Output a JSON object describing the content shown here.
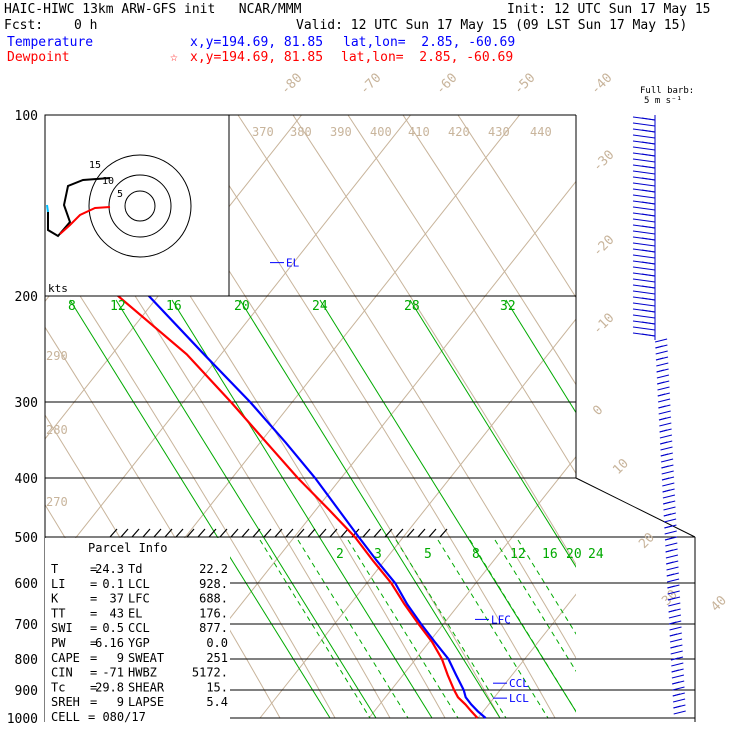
{
  "header": {
    "title": "HAIC-HIWC 13km ARW-GFS init   NCAR/MMM",
    "init": "Init: 12 UTC Sun 17 May 15",
    "fcst_label": "Fcst:",
    "fcst_value": "0 h",
    "valid": "Valid: 12 UTC Sun 17 May 15 (09 LST Sun 17 May 15)",
    "temperature_label": "Temperature",
    "temperature_xy": "x,y=194.69, 81.85",
    "temperature_latlon": "lat,lon=  2.85, -60.69",
    "dewpoint_label": "Dewpoint",
    "dewpoint_marker": "☆",
    "dewpoint_xy": "x,y=194.69, 81.85",
    "dewpoint_latlon": "lat,lon=  2.85, -60.69",
    "barb_legend_1": "Full barb:",
    "barb_legend_2": "5 m s⁻¹"
  },
  "colors": {
    "temperature": "#0000ff",
    "dewpoint": "#ff0000",
    "mixing_ratio": "#00aa00",
    "dry_adiabat": "#c8b49b",
    "barbs": "#0000cc",
    "hodograph": "#000000"
  },
  "chart_data": {
    "type": "line",
    "title": "HAIC-HIWC 13km ARW-GFS init   NCAR/MMM",
    "ylabel": "",
    "xlabel": "",
    "y_scale": "log-pressure (hPa)",
    "ylim": [
      1000,
      100
    ],
    "pressure_ticks": [
      100,
      200,
      300,
      400,
      500,
      600,
      700,
      800,
      900,
      1000
    ],
    "isotherm_labels": [
      -80,
      -70,
      -60,
      -50,
      -40,
      -30,
      -20,
      -10,
      0,
      10,
      20,
      30,
      40
    ],
    "theta_labels": [
      370,
      380,
      390,
      400,
      410,
      420,
      430,
      440,
      290,
      280,
      270
    ],
    "mixing_ratio_upper_labels": [
      8,
      12,
      16,
      20,
      24,
      28,
      32
    ],
    "mixing_ratio_lower_labels": [
      2,
      3,
      5,
      8,
      12,
      16,
      20,
      24
    ],
    "hodograph_ring_labels": [
      "15",
      "10",
      "5"
    ],
    "hodograph_units": "kts",
    "series": [
      {
        "name": "Temperature",
        "color": "#0000ff",
        "points": [
          [
            1000,
            24.3
          ],
          [
            975,
            22.5
          ],
          [
            950,
            21.0
          ],
          [
            925,
            19.8
          ],
          [
            900,
            19.5
          ],
          [
            850,
            18.0
          ],
          [
            800,
            16.5
          ],
          [
            750,
            13.5
          ],
          [
            700,
            10.5
          ],
          [
            650,
            7.5
          ],
          [
            600,
            5.0
          ],
          [
            550,
            1.0
          ],
          [
            500,
            -3.0
          ],
          [
            450,
            -7.5
          ],
          [
            400,
            -12.5
          ],
          [
            350,
            -19.0
          ],
          [
            300,
            -27.0
          ],
          [
            250,
            -37.5
          ],
          [
            200,
            -50.0
          ],
          [
            175,
            -58.0
          ],
          [
            150,
            -66.0
          ],
          [
            130,
            -74.0
          ],
          [
            115,
            -79.0
          ],
          [
            100,
            -82.0
          ]
        ]
      },
      {
        "name": "Dewpoint",
        "color": "#ff0000",
        "points": [
          [
            1000,
            22.2
          ],
          [
            975,
            20.8
          ],
          [
            950,
            19.5
          ],
          [
            925,
            17.8
          ],
          [
            900,
            17.0
          ],
          [
            850,
            15.8
          ],
          [
            800,
            14.8
          ],
          [
            750,
            12.8
          ],
          [
            700,
            9.8
          ],
          [
            650,
            6.8
          ],
          [
            600,
            4.0
          ],
          [
            550,
            0.0
          ],
          [
            500,
            -4.0
          ],
          [
            450,
            -10.0
          ],
          [
            400,
            -17.0
          ],
          [
            350,
            -24.0
          ],
          [
            300,
            -32.0
          ],
          [
            250,
            -42.0
          ],
          [
            200,
            -58.0
          ],
          [
            175,
            -66.0
          ],
          [
            150,
            -74.0
          ],
          [
            130,
            -82.0
          ],
          [
            115,
            -86.0
          ],
          [
            100,
            -88.0
          ]
        ]
      }
    ],
    "levels": [
      {
        "name": "EL",
        "pressure": 176
      },
      {
        "name": "LFC",
        "pressure": 688
      },
      {
        "name": "CCL",
        "pressure": 877
      },
      {
        "name": "LCL",
        "pressure": 928
      }
    ]
  },
  "parcel_info": {
    "title": "Parcel Info",
    "rows": [
      {
        "l1": "T",
        "v1": "24.3",
        "l2": "Td",
        "v2": "22.2"
      },
      {
        "l1": "LI",
        "v1": "0.1",
        "l2": "LCL",
        "v2": "928."
      },
      {
        "l1": "K",
        "v1": "37",
        "l2": "LFC",
        "v2": "688."
      },
      {
        "l1": "TT",
        "v1": "43",
        "l2": "EL",
        "v2": "176."
      },
      {
        "l1": "SWI",
        "v1": "0.5",
        "l2": "CCL",
        "v2": "877."
      },
      {
        "l1": "PW",
        "v1": "6.16",
        "l2": "YGP",
        "v2": "0.0"
      },
      {
        "l1": "CAPE",
        "v1": "9",
        "l2": "SWEAT",
        "v2": "251"
      },
      {
        "l1": "CIN",
        "v1": "-71",
        "l2": "HWBZ",
        "v2": "5172."
      },
      {
        "l1": "Tc",
        "v1": "29.8",
        "l2": "SHEAR",
        "v2": "15."
      },
      {
        "l1": "SREH",
        "v1": "9",
        "l2": "LAPSE",
        "v2": "5.4"
      },
      {
        "l1": "CELL",
        "v1": "080/17",
        "l2": "",
        "v2": ""
      }
    ]
  }
}
